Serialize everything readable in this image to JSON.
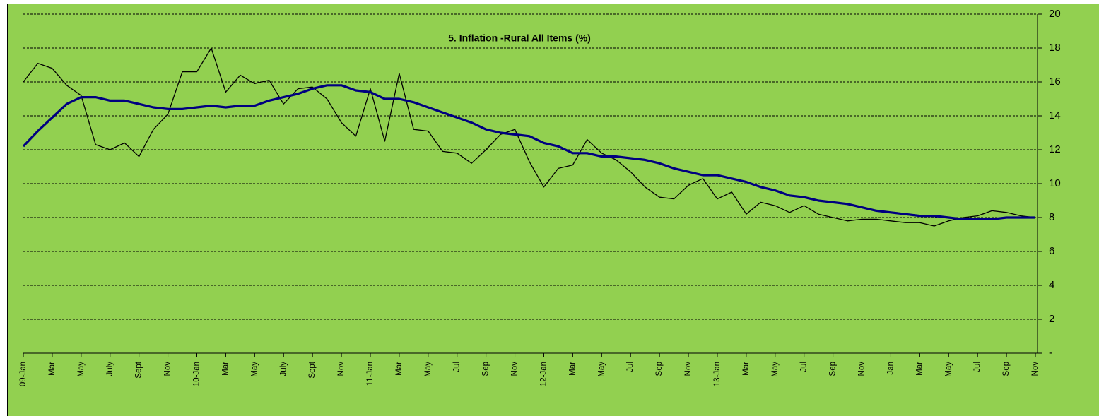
{
  "chart_data": {
    "type": "line",
    "title": "5. Inflation -Rural All Items (%)",
    "categories": [
      "09-Jan",
      null,
      "Mar",
      null,
      "May",
      null,
      "July",
      null,
      "Sept",
      null,
      "Nov",
      null,
      "10-Jan",
      null,
      "Mar",
      null,
      "May",
      null,
      "July",
      null,
      "Sept",
      null,
      "Nov",
      null,
      "11-Jan",
      null,
      "Mar",
      null,
      "May",
      null,
      "Jul",
      null,
      "Sep",
      null,
      "Nov",
      null,
      "12-Jan",
      null,
      "Mar",
      null,
      "May",
      null,
      "Jul",
      null,
      "Sep",
      null,
      "Nov",
      null,
      "13-Jan",
      null,
      "Mar",
      null,
      "May",
      null,
      "Jul",
      null,
      "Sep",
      null,
      "Nov",
      null,
      "Jan",
      null,
      "Mar",
      null,
      "May",
      null,
      "Jul",
      null,
      "Sep",
      null,
      "Nov"
    ],
    "series": [
      {
        "color": "#000000",
        "width": 1.3,
        "values": [
          16.0,
          17.1,
          16.8,
          15.8,
          15.2,
          12.3,
          12.0,
          12.4,
          11.6,
          13.2,
          14.1,
          16.6,
          16.6,
          18.0,
          15.4,
          16.4,
          15.9,
          16.1,
          14.7,
          15.6,
          15.7,
          15.0,
          13.6,
          12.8,
          15.6,
          12.5,
          16.5,
          13.2,
          13.1,
          11.9,
          11.8,
          11.2,
          12.0,
          12.9,
          13.2,
          11.3,
          9.8,
          10.9,
          11.1,
          12.6,
          11.8,
          11.4,
          10.7,
          9.8,
          9.2,
          9.1,
          9.9,
          10.3,
          9.1,
          9.5,
          8.2,
          8.9,
          8.7,
          8.3,
          8.7,
          8.2,
          8.0,
          7.8,
          7.9,
          7.9,
          7.8,
          7.7,
          7.7,
          7.5,
          7.8,
          8.0,
          8.1,
          8.4,
          8.3,
          8.1,
          8.0
        ]
      },
      {
        "color": "#000080",
        "width": 3.2,
        "values": [
          12.2,
          13.1,
          13.9,
          14.7,
          15.1,
          15.1,
          14.9,
          14.9,
          14.7,
          14.5,
          14.4,
          14.4,
          14.5,
          14.6,
          14.5,
          14.6,
          14.6,
          14.9,
          15.1,
          15.3,
          15.6,
          15.8,
          15.8,
          15.5,
          15.4,
          15.0,
          15.0,
          14.8,
          14.5,
          14.2,
          13.9,
          13.6,
          13.2,
          13.0,
          12.9,
          12.8,
          12.4,
          12.2,
          11.8,
          11.8,
          11.6,
          11.6,
          11.5,
          11.4,
          11.2,
          10.9,
          10.7,
          10.5,
          10.5,
          10.3,
          10.1,
          9.8,
          9.6,
          9.3,
          9.2,
          9.0,
          8.9,
          8.8,
          8.6,
          8.4,
          8.3,
          8.2,
          8.1,
          8.1,
          8.0,
          7.9,
          7.9,
          7.9,
          8.0,
          8.0,
          8.0
        ]
      }
    ],
    "ylim": [
      0,
      20
    ],
    "yticks": [
      {
        "value": 0,
        "label": "-"
      },
      2,
      4,
      6,
      8,
      10,
      12,
      14,
      16,
      18,
      20
    ],
    "grid": true
  }
}
